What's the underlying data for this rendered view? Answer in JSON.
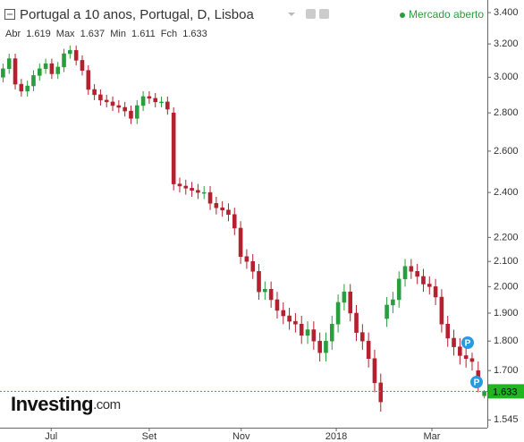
{
  "chart_data": {
    "type": "candlestick",
    "title": "Portugal a 10 anos, Portugal, D, Lisboa",
    "status": "Mercado aberto",
    "ohlc_labels": {
      "open": "Abr",
      "high": "Max",
      "low": "Min",
      "close": "Fch"
    },
    "watermark": "Investing",
    "watermark_suffix": ".com",
    "event_markers": [
      "P",
      "P"
    ],
    "up_color": "#2a9d3e",
    "down_color": "#b5202e",
    "price_line_color": "#22b522",
    "log_y": true,
    "ylim": [
      1.522,
      3.484
    ],
    "yticks": [
      {
        "value": 1.545,
        "label": "1.545"
      },
      {
        "value": 1.7,
        "label": "1.700"
      },
      {
        "value": 1.8,
        "label": "1.800"
      },
      {
        "value": 1.9,
        "label": "1.900"
      },
      {
        "value": 2.0,
        "label": "2.000"
      },
      {
        "value": 2.1,
        "label": "2.100"
      },
      {
        "value": 2.2,
        "label": "2.200"
      },
      {
        "value": 2.4,
        "label": "2.400"
      },
      {
        "value": 2.6,
        "label": "2.600"
      },
      {
        "value": 2.8,
        "label": "2.800"
      },
      {
        "value": 3.0,
        "label": "3.000"
      },
      {
        "value": 3.2,
        "label": "3.200"
      },
      {
        "value": 3.4,
        "label": "3.400"
      }
    ],
    "xlim": [
      -0.5,
      79.5
    ],
    "xticks": [
      {
        "value": 7.9,
        "label": "Jul"
      },
      {
        "value": 24.0,
        "label": "Set"
      },
      {
        "value": 39.1,
        "label": "Nov"
      },
      {
        "value": 54.7,
        "label": "2018"
      },
      {
        "value": 70.4,
        "label": "Mar"
      }
    ],
    "open": [
      3.0,
      3.05,
      3.11,
      2.96,
      2.92,
      2.95,
      3.01,
      3.05,
      3.08,
      3.02,
      3.06,
      3.14,
      3.16,
      3.1,
      3.04,
      2.93,
      2.9,
      2.87,
      2.86,
      2.84,
      2.83,
      2.81,
      2.77,
      2.84,
      2.89,
      2.88,
      2.86,
      2.86,
      2.8,
      2.44,
      2.43,
      2.42,
      2.41,
      2.4,
      2.4,
      2.35,
      2.33,
      2.32,
      2.3,
      2.24,
      2.12,
      2.1,
      2.06,
      1.98,
      1.99,
      1.95,
      1.91,
      1.89,
      1.87,
      1.86,
      1.82,
      1.84,
      1.8,
      1.76,
      1.8,
      1.86,
      1.94,
      1.98,
      1.9,
      1.83,
      1.8,
      1.74,
      1.66,
      1.88,
      1.93,
      1.95,
      2.03,
      2.08,
      2.06,
      2.04,
      2.01,
      2.0,
      1.96,
      1.86,
      1.81,
      1.78,
      1.75,
      1.74,
      1.7,
      1.619
    ],
    "high": [
      3.08,
      3.14,
      3.14,
      2.99,
      2.98,
      3.04,
      3.08,
      3.11,
      3.11,
      3.09,
      3.17,
      3.19,
      3.19,
      3.13,
      3.07,
      2.96,
      2.93,
      2.9,
      2.89,
      2.87,
      2.86,
      2.84,
      2.87,
      2.92,
      2.92,
      2.91,
      2.89,
      2.89,
      2.83,
      2.47,
      2.46,
      2.45,
      2.44,
      2.43,
      2.43,
      2.38,
      2.36,
      2.35,
      2.33,
      2.27,
      2.15,
      2.13,
      2.09,
      2.02,
      2.02,
      1.98,
      1.94,
      1.92,
      1.9,
      1.89,
      1.87,
      1.87,
      1.83,
      1.83,
      1.89,
      1.97,
      2.01,
      2.01,
      1.93,
      1.86,
      1.83,
      1.77,
      1.69,
      1.96,
      1.98,
      2.06,
      2.11,
      2.11,
      2.09,
      2.07,
      2.04,
      2.03,
      1.99,
      1.89,
      1.84,
      1.81,
      1.78,
      1.76,
      1.73,
      1.637
    ],
    "low": [
      2.97,
      3.02,
      2.93,
      2.89,
      2.89,
      2.92,
      2.98,
      3.02,
      2.99,
      2.99,
      3.03,
      3.11,
      3.07,
      3.01,
      2.9,
      2.87,
      2.84,
      2.83,
      2.81,
      2.8,
      2.78,
      2.74,
      2.74,
      2.81,
      2.85,
      2.83,
      2.83,
      2.79,
      2.41,
      2.4,
      2.39,
      2.38,
      2.37,
      2.37,
      2.32,
      2.3,
      2.29,
      2.27,
      2.21,
      2.09,
      2.07,
      2.03,
      1.95,
      1.95,
      1.92,
      1.88,
      1.86,
      1.84,
      1.83,
      1.79,
      1.79,
      1.77,
      1.73,
      1.73,
      1.77,
      1.83,
      1.91,
      1.87,
      1.8,
      1.77,
      1.71,
      1.63,
      1.57,
      1.85,
      1.9,
      1.92,
      2.0,
      2.03,
      2.01,
      1.98,
      1.97,
      1.93,
      1.83,
      1.78,
      1.75,
      1.72,
      1.71,
      1.7,
      1.63,
      1.611
    ],
    "close": [
      3.05,
      3.11,
      2.96,
      2.92,
      2.95,
      3.01,
      3.05,
      3.08,
      3.02,
      3.06,
      3.14,
      3.16,
      3.1,
      3.04,
      2.93,
      2.9,
      2.87,
      2.86,
      2.84,
      2.83,
      2.81,
      2.77,
      2.84,
      2.89,
      2.88,
      2.86,
      2.86,
      2.82,
      2.44,
      2.43,
      2.42,
      2.41,
      2.4,
      2.4,
      2.35,
      2.33,
      2.32,
      2.3,
      2.24,
      2.12,
      2.1,
      2.06,
      1.98,
      1.99,
      1.95,
      1.91,
      1.89,
      1.87,
      1.86,
      1.82,
      1.84,
      1.8,
      1.76,
      1.8,
      1.86,
      1.94,
      1.98,
      1.9,
      1.83,
      1.8,
      1.74,
      1.66,
      1.6,
      1.93,
      1.95,
      2.03,
      2.08,
      2.06,
      2.04,
      2.01,
      2.0,
      1.96,
      1.86,
      1.81,
      1.78,
      1.75,
      1.74,
      1.73,
      1.66,
      1.633
    ]
  }
}
